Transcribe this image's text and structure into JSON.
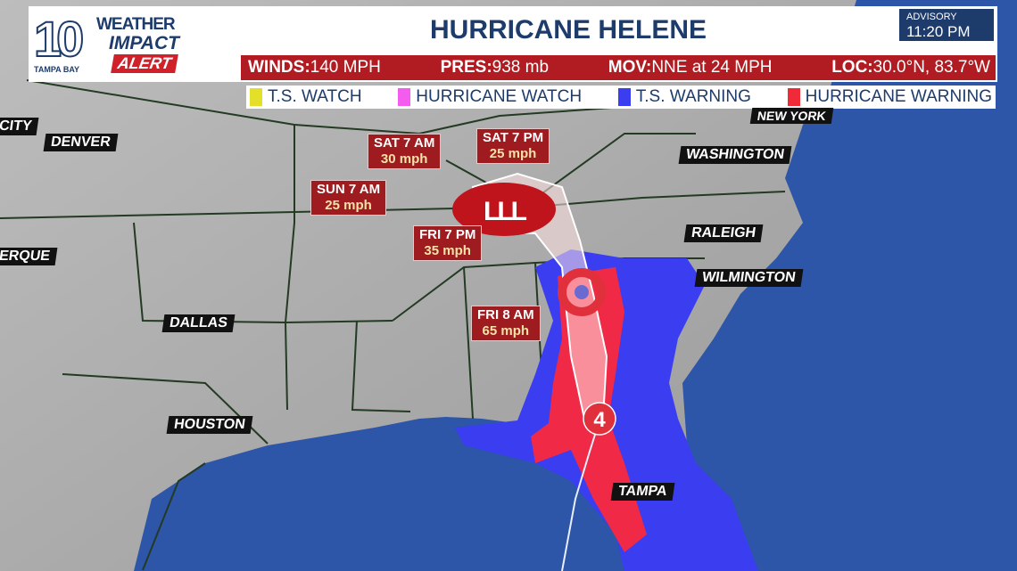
{
  "header": {
    "logo": {
      "number": "10",
      "station": "TAMPA BAY",
      "line1": "WEATHER",
      "line2": "IMPACT",
      "line3": "ALERT"
    },
    "title": "HURRICANE HELENE",
    "advisory": {
      "label": "ADVISORY",
      "time": "11:20 PM"
    },
    "stats": [
      {
        "label": "WINDS:",
        "value": "140 MPH"
      },
      {
        "label": "PRES:",
        "value": "938 mb"
      },
      {
        "label": "MOV:",
        "value": "NNE at 24 MPH"
      },
      {
        "label": "LOC:",
        "value": "30.0°N, 83.7°W"
      }
    ]
  },
  "legend": [
    {
      "label": "T.S. WATCH",
      "color": "#e4e02a"
    },
    {
      "label": "HURRICANE WATCH",
      "color": "#f45cf0"
    },
    {
      "label": "T.S. WARNING",
      "color": "#3a3ef0"
    },
    {
      "label": "HURRICANE WARNING",
      "color": "#f02a36"
    }
  ],
  "cities": [
    "CITY",
    "DENVER",
    "ERQUE",
    "DALLAS",
    "HOUSTON",
    "NEW YORK",
    "WASHINGTON",
    "RALEIGH",
    "WILMINGTON",
    "TAMPA"
  ],
  "forecast": [
    {
      "time": "SAT 7 AM",
      "speed": "30 mph"
    },
    {
      "time": "SAT 7 PM",
      "speed": "25 mph"
    },
    {
      "time": "SUN 7 AM",
      "speed": "25 mph"
    },
    {
      "time": "FRI 7 PM",
      "speed": "35 mph"
    },
    {
      "time": "FRI 8 AM",
      "speed": "65 mph"
    }
  ],
  "storm": {
    "category": "4",
    "low_symbols": "LLL"
  },
  "colors": {
    "navy": "#1d3b6b",
    "red_bar": "#b01c22",
    "land": "#a9a9a9",
    "ocean": "#2d55a8"
  }
}
